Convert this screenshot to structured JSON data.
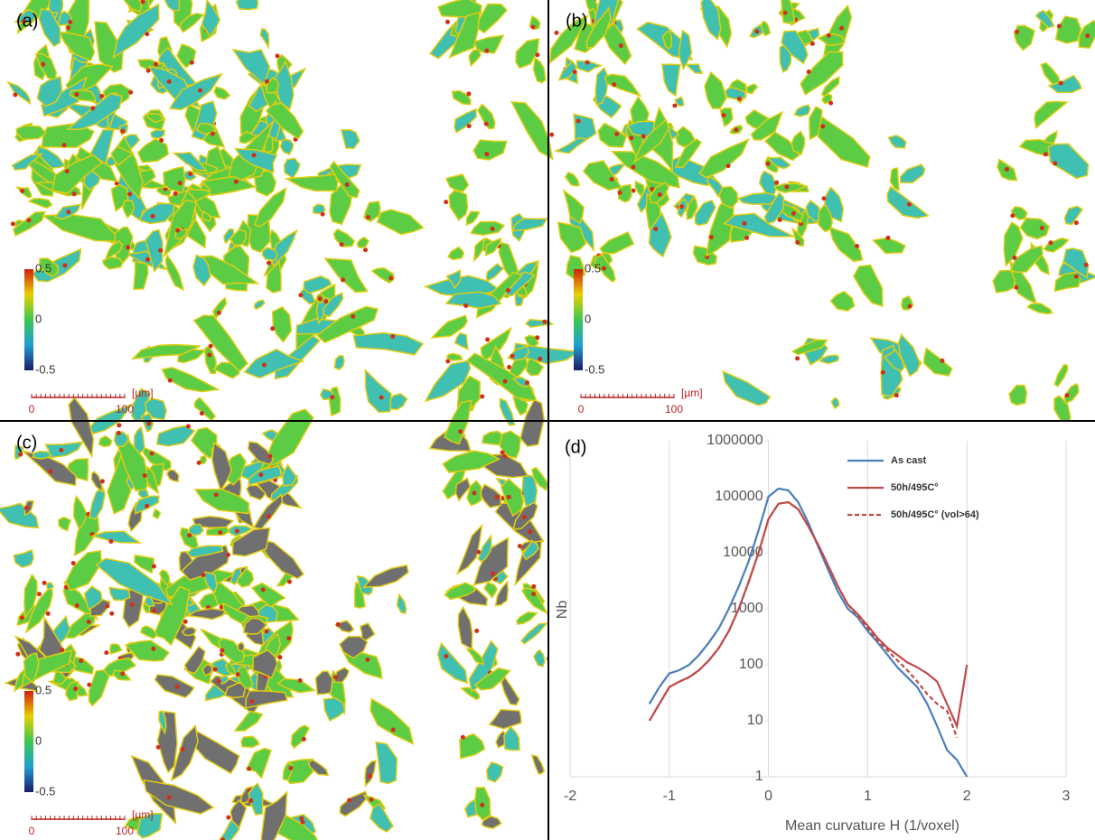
{
  "panels": [
    {
      "label": "(a)",
      "colorbar": {
        "ticks": [
          0.5,
          0,
          -0.5
        ]
      },
      "scalebar": {
        "unit": "[µm]",
        "ticks": [
          0,
          100
        ]
      }
    },
    {
      "label": "(b)",
      "colorbar": {
        "ticks": [
          0.5,
          0,
          -0.5
        ]
      },
      "scalebar": {
        "unit": "[µm]",
        "ticks": [
          0,
          100
        ]
      }
    },
    {
      "label": "(c)",
      "colorbar": {
        "ticks": [
          0.5,
          0,
          -0.5
        ]
      },
      "scalebar": {
        "unit": "[µm]",
        "ticks": [
          0,
          100
        ]
      }
    }
  ],
  "chart_data": {
    "type": "line",
    "label": "(d)",
    "xlabel": "Mean curvature H (1/voxel)",
    "ylabel": "Nb",
    "xlim": [
      -2,
      3
    ],
    "ylim": [
      1,
      1000000
    ],
    "log_y": true,
    "grid": "x",
    "legend": "upper right",
    "xticks": [
      -2,
      -1,
      0,
      1,
      2,
      3
    ],
    "yticks": [
      1,
      10,
      100,
      1000,
      10000,
      100000,
      1000000
    ],
    "x": [
      -1.2,
      -1.1,
      -1.0,
      -0.9,
      -0.8,
      -0.7,
      -0.6,
      -0.5,
      -0.4,
      -0.3,
      -0.2,
      -0.1,
      0,
      0.1,
      0.2,
      0.3,
      0.4,
      0.5,
      0.6,
      0.7,
      0.8,
      0.9,
      1.0,
      1.1,
      1.2,
      1.3,
      1.4,
      1.5,
      1.6,
      1.7,
      1.8,
      1.9,
      2.0
    ],
    "series": [
      {
        "name": "As cast",
        "color": "#4a7ebb",
        "dash": false,
        "values": [
          20,
          40,
          70,
          80,
          100,
          150,
          250,
          450,
          1000,
          2500,
          7000,
          25000,
          100000,
          140000,
          130000,
          80000,
          35000,
          13000,
          5000,
          2000,
          1000,
          700,
          400,
          250,
          150,
          90,
          60,
          40,
          20,
          8,
          3,
          2,
          1
        ]
      },
      {
        "name": "50h/495C°",
        "color": "#be4b48",
        "dash": false,
        "values": [
          10,
          20,
          40,
          50,
          60,
          80,
          120,
          200,
          400,
          1000,
          3000,
          10000,
          40000,
          75000,
          80000,
          60000,
          30000,
          14000,
          6000,
          2500,
          1200,
          800,
          500,
          300,
          200,
          150,
          110,
          90,
          70,
          50,
          20,
          8,
          100
        ]
      },
      {
        "name": "50h/495C° (vol>64)",
        "color": "#be4b48",
        "dash": true,
        "values": [
          10,
          20,
          40,
          50,
          60,
          80,
          120,
          200,
          400,
          1000,
          3000,
          10000,
          40000,
          75000,
          80000,
          60000,
          30000,
          14000,
          6000,
          2500,
          1200,
          750,
          450,
          270,
          180,
          120,
          80,
          50,
          30,
          20,
          15,
          5,
          null
        ]
      }
    ]
  }
}
